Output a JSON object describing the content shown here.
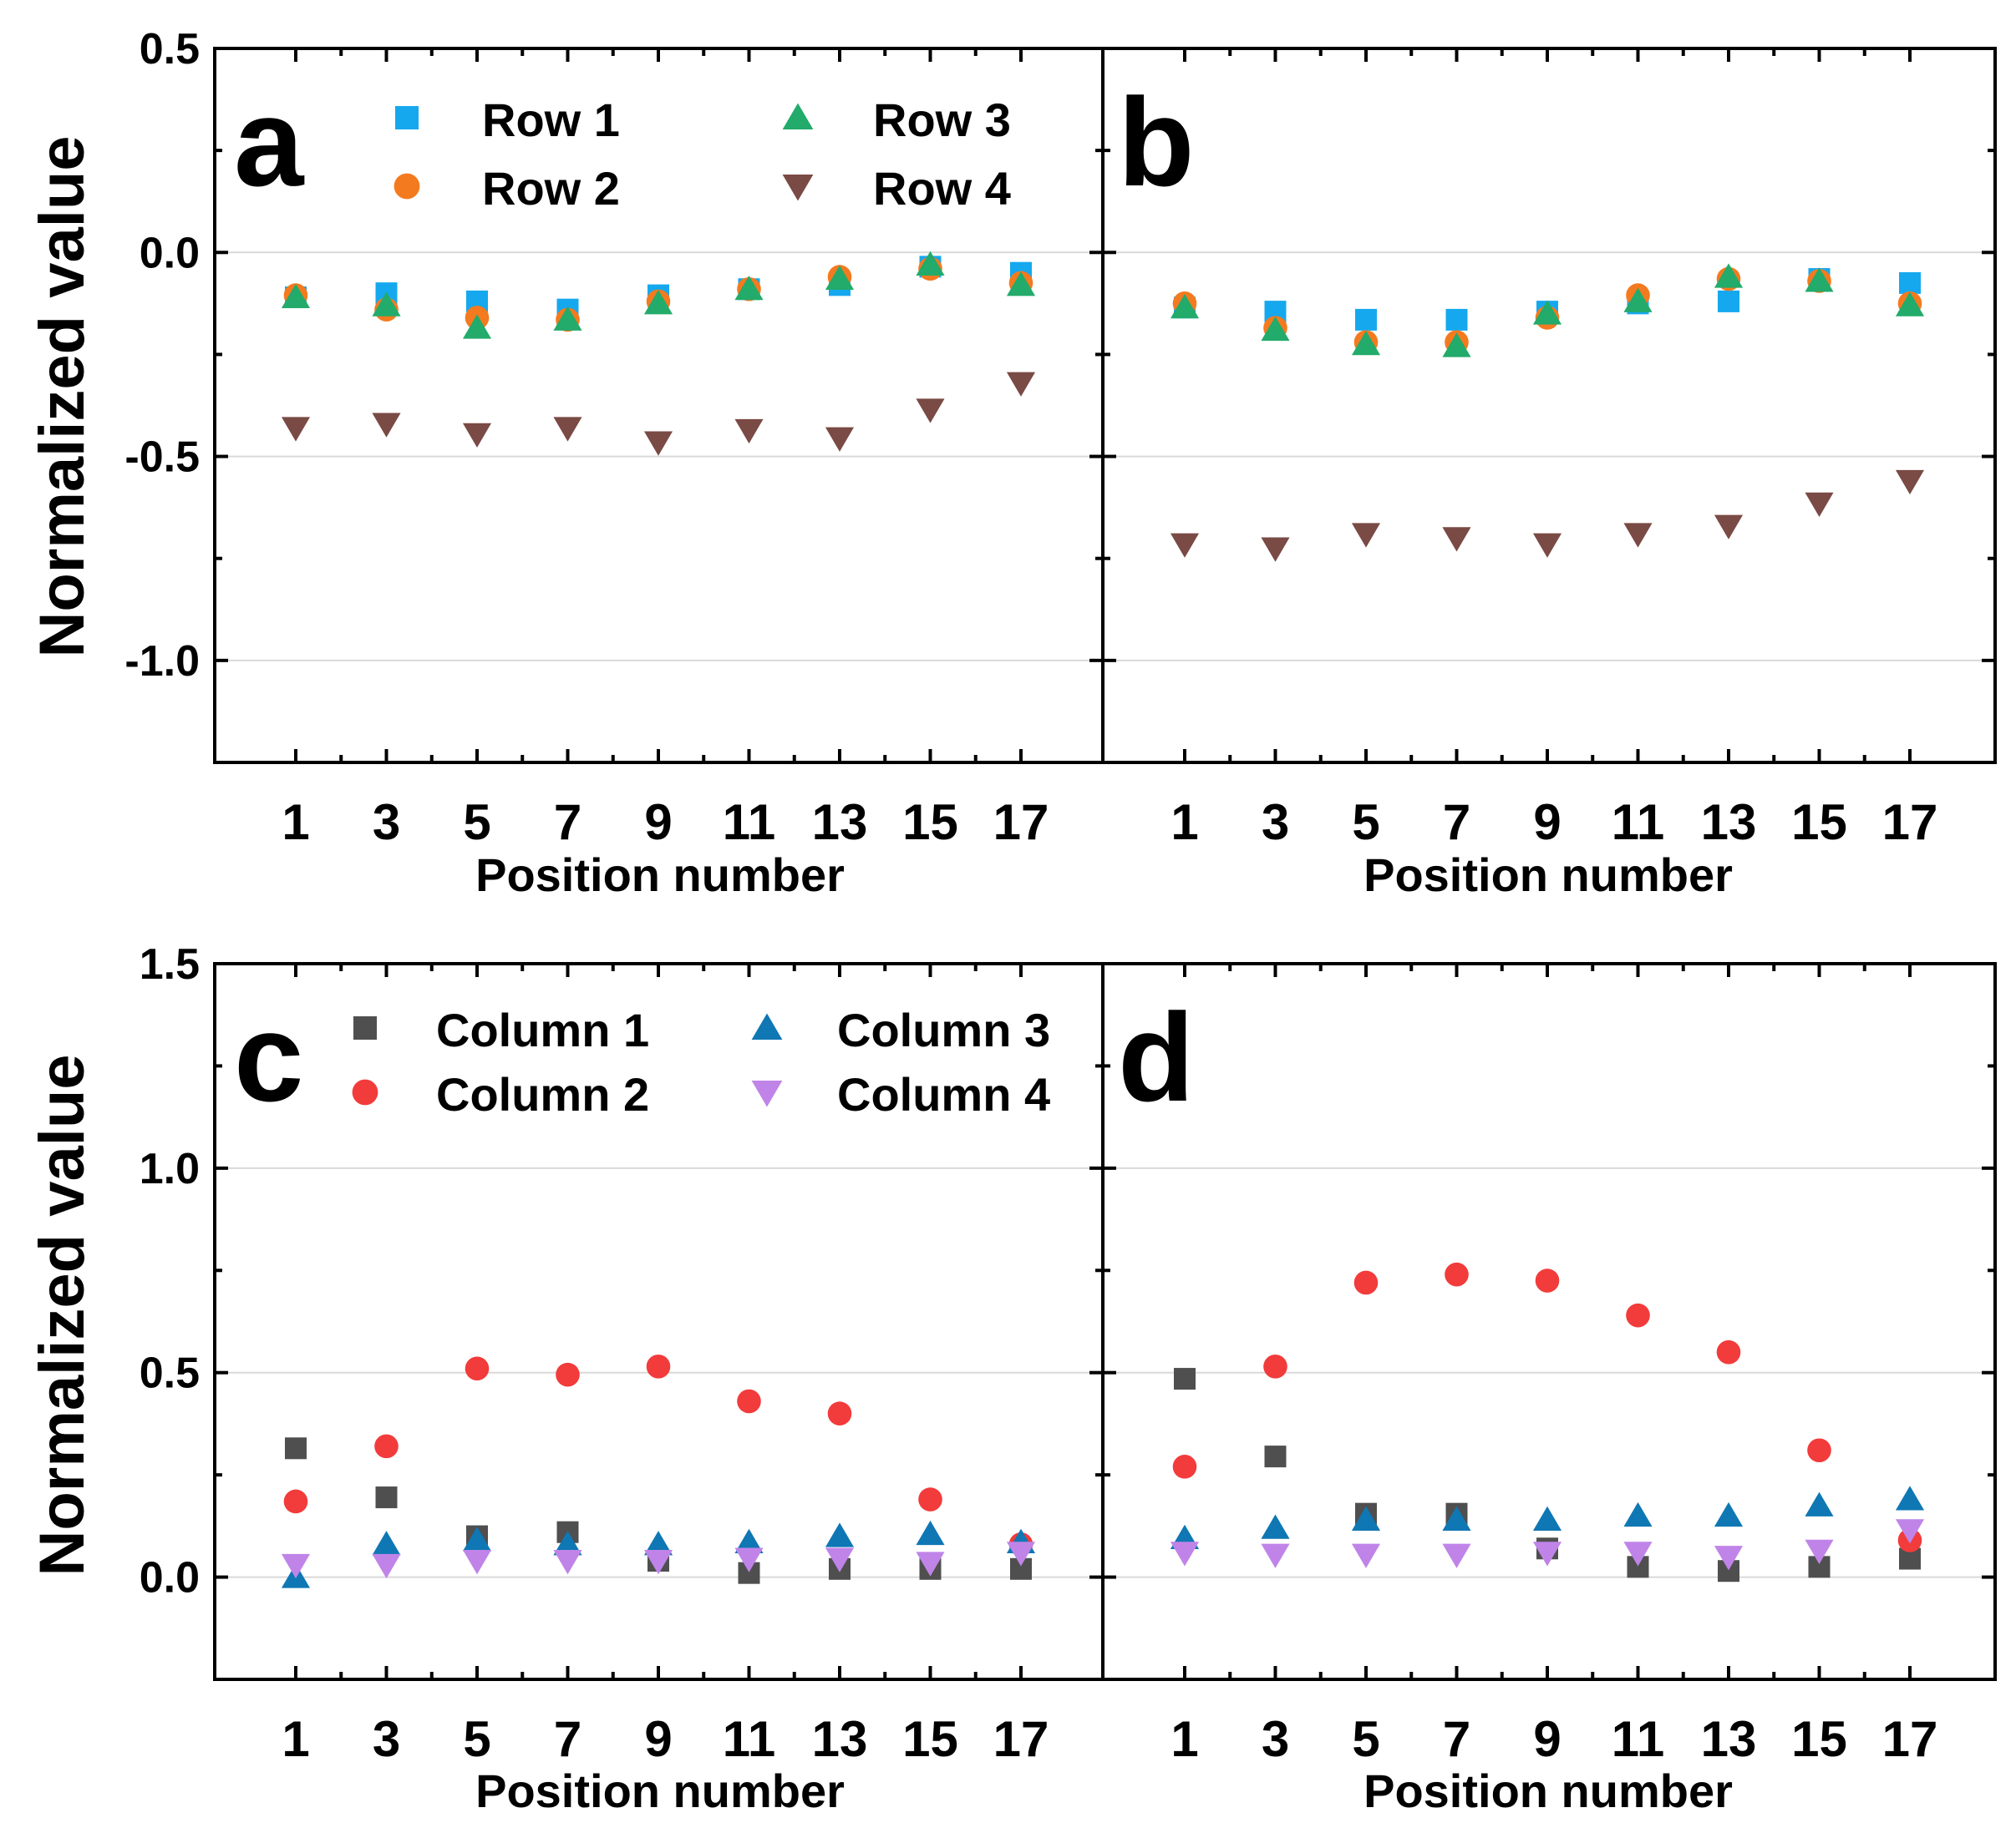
{
  "figure": {
    "ylabel": "Normalized value",
    "xlabel": "Position number"
  },
  "colors": {
    "row1": "#16a8ee",
    "row2": "#f47a1f",
    "row3": "#22ab6a",
    "row4": "#7a4a45",
    "col1": "#4f4f4f",
    "col2": "#f23b3b",
    "col3": "#0f77b4",
    "col4": "#c084e8"
  },
  "chart_data": [
    {
      "panel": "a",
      "type": "scatter",
      "xlabel": "Position number",
      "ylabel": "Normalized value",
      "ylim": [
        -1.25,
        0.5
      ],
      "yticks": [
        0.5,
        0.0,
        -0.5,
        -1.0
      ],
      "ytick_labels": [
        "0.5",
        "0.0",
        "-0.5",
        "-1.0"
      ],
      "xticks": [
        1,
        3,
        5,
        7,
        9,
        11,
        13,
        15,
        17
      ],
      "xtick_labels": [
        "1",
        "3",
        "5",
        "7",
        "9",
        "11",
        "13",
        "15",
        "17"
      ],
      "x": [
        1,
        3,
        5,
        7,
        9,
        11,
        13,
        15,
        17
      ],
      "grid": true,
      "legend_position": "top",
      "series": [
        {
          "name": "Row 1",
          "marker": "square",
          "color_key": "row1",
          "values": [
            -0.11,
            -0.1,
            -0.12,
            -0.14,
            -0.105,
            -0.09,
            -0.08,
            -0.035,
            -0.05
          ]
        },
        {
          "name": "Row 2",
          "marker": "circle",
          "color_key": "row2",
          "values": [
            -0.105,
            -0.14,
            -0.16,
            -0.165,
            -0.12,
            -0.09,
            -0.06,
            -0.04,
            -0.075
          ]
        },
        {
          "name": "Row 3",
          "marker": "triangle-up",
          "color_key": "row3",
          "values": [
            -0.11,
            -0.13,
            -0.185,
            -0.165,
            -0.125,
            -0.09,
            -0.065,
            -0.03,
            -0.08
          ]
        },
        {
          "name": "Row 4",
          "marker": "triangle-down",
          "color_key": "row4",
          "values": [
            -0.43,
            -0.42,
            -0.445,
            -0.43,
            -0.465,
            -0.435,
            -0.455,
            -0.385,
            -0.32
          ]
        }
      ]
    },
    {
      "panel": "b",
      "type": "scatter",
      "xlabel": "Position number",
      "ylim": [
        -1.25,
        0.5
      ],
      "yticks": [
        0.5,
        0.0,
        -0.5,
        -1.0
      ],
      "xticks": [
        1,
        3,
        5,
        7,
        9,
        11,
        13,
        15,
        17
      ],
      "xtick_labels": [
        "1",
        "3",
        "5",
        "7",
        "9",
        "11",
        "13",
        "15",
        "17"
      ],
      "x": [
        1,
        3,
        5,
        7,
        9,
        11,
        13,
        15,
        17
      ],
      "grid": true,
      "series": [
        {
          "name": "Row 1",
          "marker": "square",
          "color_key": "row1",
          "values": [
            -0.135,
            -0.145,
            -0.165,
            -0.165,
            -0.145,
            -0.125,
            -0.12,
            -0.065,
            -0.075
          ]
        },
        {
          "name": "Row 2",
          "marker": "circle",
          "color_key": "row2",
          "values": [
            -0.125,
            -0.185,
            -0.22,
            -0.22,
            -0.16,
            -0.105,
            -0.065,
            -0.07,
            -0.125
          ]
        },
        {
          "name": "Row 3",
          "marker": "triangle-up",
          "color_key": "row3",
          "values": [
            -0.135,
            -0.19,
            -0.225,
            -0.23,
            -0.15,
            -0.12,
            -0.06,
            -0.07,
            -0.13
          ]
        },
        {
          "name": "Row 4",
          "marker": "triangle-down",
          "color_key": "row4",
          "values": [
            -0.715,
            -0.725,
            -0.69,
            -0.7,
            -0.715,
            -0.69,
            -0.67,
            -0.615,
            -0.56
          ]
        }
      ]
    },
    {
      "panel": "c",
      "type": "scatter",
      "xlabel": "Position number",
      "ylabel": "Normalized value",
      "ylim": [
        -0.25,
        1.5
      ],
      "yticks": [
        1.5,
        1.0,
        0.5,
        0.0
      ],
      "ytick_labels": [
        "1.5",
        "1.0",
        "0.5",
        "0.0"
      ],
      "xticks": [
        1,
        3,
        5,
        7,
        9,
        11,
        13,
        15,
        17
      ],
      "xtick_labels": [
        "1",
        "3",
        "5",
        "7",
        "9",
        "11",
        "13",
        "15",
        "17"
      ],
      "x": [
        1,
        3,
        5,
        7,
        9,
        11,
        13,
        15,
        17
      ],
      "grid": true,
      "legend_position": "top",
      "series": [
        {
          "name": "Column 1",
          "marker": "square",
          "color_key": "col1",
          "values": [
            0.315,
            0.195,
            0.1,
            0.11,
            0.04,
            0.01,
            0.02,
            0.02,
            0.02
          ]
        },
        {
          "name": "Column 2",
          "marker": "circle",
          "color_key": "col2",
          "values": [
            0.185,
            0.32,
            0.51,
            0.495,
            0.515,
            0.43,
            0.4,
            0.19,
            0.08
          ]
        },
        {
          "name": "Column 3",
          "marker": "triangle-up",
          "color_key": "col3",
          "values": [
            0.0,
            0.08,
            0.09,
            0.08,
            0.08,
            0.085,
            0.1,
            0.105,
            0.085
          ]
        },
        {
          "name": "Column 4",
          "marker": "triangle-down",
          "color_key": "col4",
          "values": [
            0.03,
            0.03,
            0.04,
            0.04,
            0.04,
            0.045,
            0.045,
            0.035,
            0.06
          ]
        }
      ]
    },
    {
      "panel": "d",
      "type": "scatter",
      "xlabel": "Position number",
      "ylim": [
        -0.25,
        1.5
      ],
      "yticks": [
        1.5,
        1.0,
        0.5,
        0.0
      ],
      "xticks": [
        1,
        3,
        5,
        7,
        9,
        11,
        13,
        15,
        17
      ],
      "xtick_labels": [
        "1",
        "3",
        "5",
        "7",
        "9",
        "11",
        "13",
        "15",
        "17"
      ],
      "x": [
        1,
        3,
        5,
        7,
        9,
        11,
        13,
        15,
        17
      ],
      "grid": true,
      "series": [
        {
          "name": "Column 1",
          "marker": "square",
          "color_key": "col1",
          "values": [
            0.485,
            0.295,
            0.155,
            0.155,
            0.07,
            0.025,
            0.015,
            0.025,
            0.045
          ]
        },
        {
          "name": "Column 2",
          "marker": "circle",
          "color_key": "col2",
          "values": [
            0.27,
            0.515,
            0.72,
            0.74,
            0.725,
            0.64,
            0.55,
            0.31,
            0.09
          ]
        },
        {
          "name": "Column 3",
          "marker": "triangle-up",
          "color_key": "col3",
          "values": [
            0.095,
            0.12,
            0.14,
            0.14,
            0.14,
            0.15,
            0.15,
            0.175,
            0.19
          ]
        },
        {
          "name": "Column 4",
          "marker": "triangle-down",
          "color_key": "col4",
          "values": [
            0.06,
            0.055,
            0.055,
            0.055,
            0.06,
            0.06,
            0.05,
            0.065,
            0.115
          ]
        }
      ]
    }
  ]
}
